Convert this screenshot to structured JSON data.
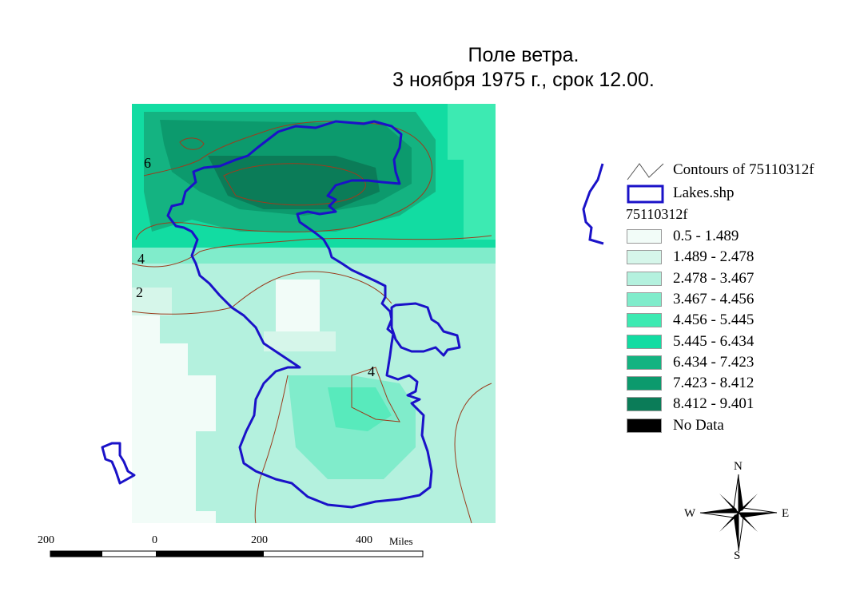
{
  "title": {
    "line1": "Поле ветра.",
    "line2": "3 ноября 1975 г., срок 12.00."
  },
  "legend": {
    "contours_label": "Contours of 75110312f",
    "lakes_label": "Lakes.shp",
    "field_label": "75110312f",
    "classes": [
      {
        "label": "0.5 - 1.489",
        "color": "#f2fcf8"
      },
      {
        "label": "1.489 - 2.478",
        "color": "#d6f6ea"
      },
      {
        "label": "2.478 - 3.467",
        "color": "#b4f1de"
      },
      {
        "label": "3.467 - 4.456",
        "color": "#80eccb"
      },
      {
        "label": "4.456 - 5.445",
        "color": "#3deab2"
      },
      {
        "label": "5.445 - 6.434",
        "color": "#12dca2"
      },
      {
        "label": "6.434 - 7.423",
        "color": "#14b381"
      },
      {
        "label": "7.423 - 8.412",
        "color": "#0c9a6d"
      },
      {
        "label": "8.412 - 9.401",
        "color": "#0b7c58"
      },
      {
        "label": "No Data",
        "color": "#000000"
      }
    ],
    "lake_color": "#1a12c8",
    "contour_color": "#9a3d1e"
  },
  "contour_labels": [
    "6",
    "4",
    "2",
    "4"
  ],
  "scalebar": {
    "ticks": [
      "200",
      "0",
      "200",
      "400"
    ],
    "unit": "Miles"
  },
  "compass": {
    "n": "N",
    "s": "S",
    "e": "E",
    "w": "W"
  }
}
